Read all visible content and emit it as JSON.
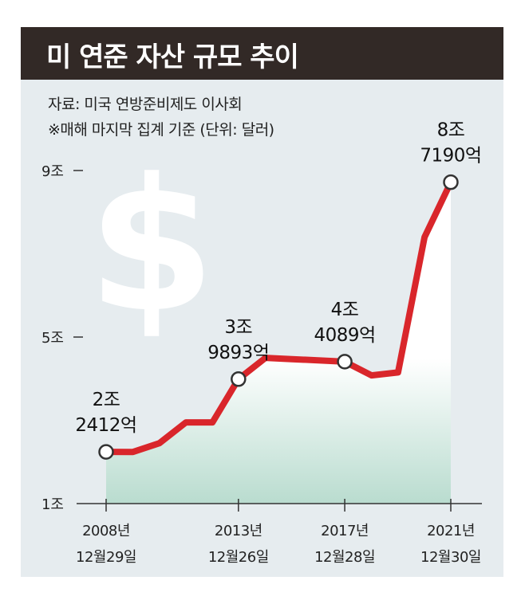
{
  "title": "미 연준 자산 규모 추이",
  "source": "자료: 미국 연방준비제도 이사회",
  "note": "※매해 마지막 집계 기준 (단위: 달러)",
  "icon": "dollar-sign-icon",
  "colors": {
    "title_bg": "#322926",
    "panel_bg": "#e6ecef",
    "line": "#d9262b",
    "area_top": "#ffffff",
    "area_bottom": "#b9dccf"
  },
  "chart_data": {
    "type": "line",
    "title": "미 연준 자산 규모 추이",
    "y_unit": "조 달러",
    "ylim": [
      1,
      9
    ],
    "y_ticks": [
      {
        "value": 9,
        "label": "9조"
      },
      {
        "value": 5,
        "label": "5조"
      },
      {
        "value": 1,
        "label": "1조"
      }
    ],
    "x_ticks": [
      {
        "x": 2008.99,
        "line1": "2008년",
        "line2": "12월29일"
      },
      {
        "x": 2013.98,
        "line1": "2013년",
        "line2": "12월26일"
      },
      {
        "x": 2017.99,
        "line1": "2017년",
        "line2": "12월28일"
      },
      {
        "x": 2021.99,
        "line1": "2021년",
        "line2": "12월30일"
      }
    ],
    "points": [
      {
        "x": 2008.99,
        "y": 2.2412
      },
      {
        "x": 2010.0,
        "y": 2.24
      },
      {
        "x": 2011.0,
        "y": 2.45
      },
      {
        "x": 2012.0,
        "y": 2.95
      },
      {
        "x": 2013.0,
        "y": 2.95
      },
      {
        "x": 2013.98,
        "y": 3.9893
      },
      {
        "x": 2015.0,
        "y": 4.5
      },
      {
        "x": 2016.0,
        "y": 4.47
      },
      {
        "x": 2017.99,
        "y": 4.4089
      },
      {
        "x": 2019.0,
        "y": 4.08
      },
      {
        "x": 2020.0,
        "y": 4.15
      },
      {
        "x": 2021.0,
        "y": 7.4
      },
      {
        "x": 2021.99,
        "y": 8.719
      }
    ],
    "markers": [
      {
        "x": 2008.99,
        "y": 2.2412,
        "line1": "2조",
        "line2": "2412억"
      },
      {
        "x": 2013.98,
        "y": 3.9893,
        "line1": "3조",
        "line2": "9893억"
      },
      {
        "x": 2017.99,
        "y": 4.4089,
        "line1": "4조",
        "line2": "4089억"
      },
      {
        "x": 2021.99,
        "y": 8.719,
        "line1": "8조",
        "line2": "7190억"
      }
    ]
  }
}
